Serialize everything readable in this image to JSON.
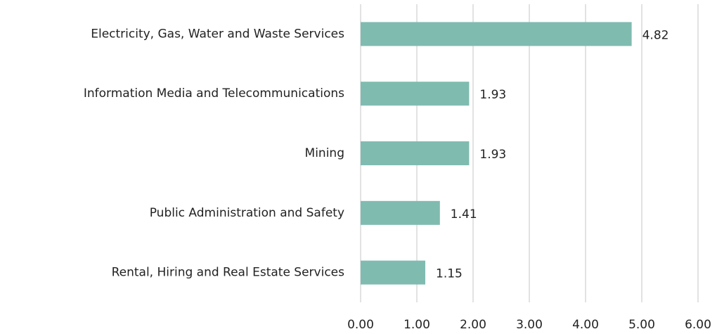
{
  "chart_data": {
    "type": "bar",
    "orientation": "horizontal",
    "categories": [
      "Electricity, Gas, Water and Waste Services",
      "Information Media and Telecommunications",
      "Mining",
      "Public Administration and Safety",
      "Rental, Hiring and Real Estate Services"
    ],
    "values": [
      4.82,
      1.93,
      1.93,
      1.41,
      1.15
    ],
    "color": "#80bbb0",
    "xlim": [
      0,
      6
    ],
    "xticks": [
      {
        "value": 0,
        "label": "0.00"
      },
      {
        "value": 1,
        "label": "1.00"
      },
      {
        "value": 2,
        "label": "2.00"
      },
      {
        "value": 3,
        "label": "3.00"
      },
      {
        "value": 4,
        "label": "4.00"
      },
      {
        "value": 5,
        "label": "5.00"
      },
      {
        "value": 6,
        "label": "6.00"
      }
    ],
    "grid": true
  }
}
